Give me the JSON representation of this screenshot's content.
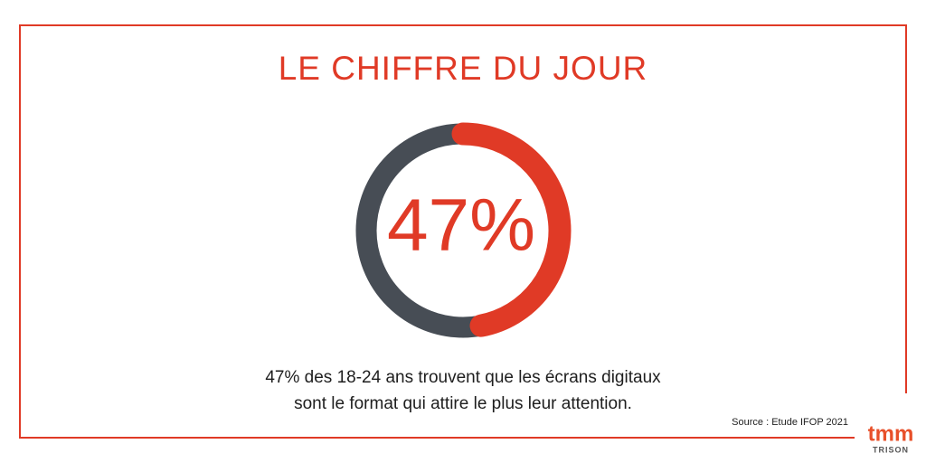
{
  "chart_data": {
    "type": "gauge",
    "title": "LE CHIFFRE DU JOUR",
    "values": [
      47
    ],
    "value_labels": [
      "47%"
    ],
    "ylim": [
      0,
      100
    ],
    "color": "#e03a26",
    "track_color": "#474d55",
    "caption": [
      "47% des 18-24 ans trouvent que les écrans digitaux",
      "sont le format qui attire le plus leur attention."
    ],
    "source": "Source : Etude IFOP 2021"
  },
  "logo": {
    "name": "tmm",
    "sub": "TRISON"
  }
}
